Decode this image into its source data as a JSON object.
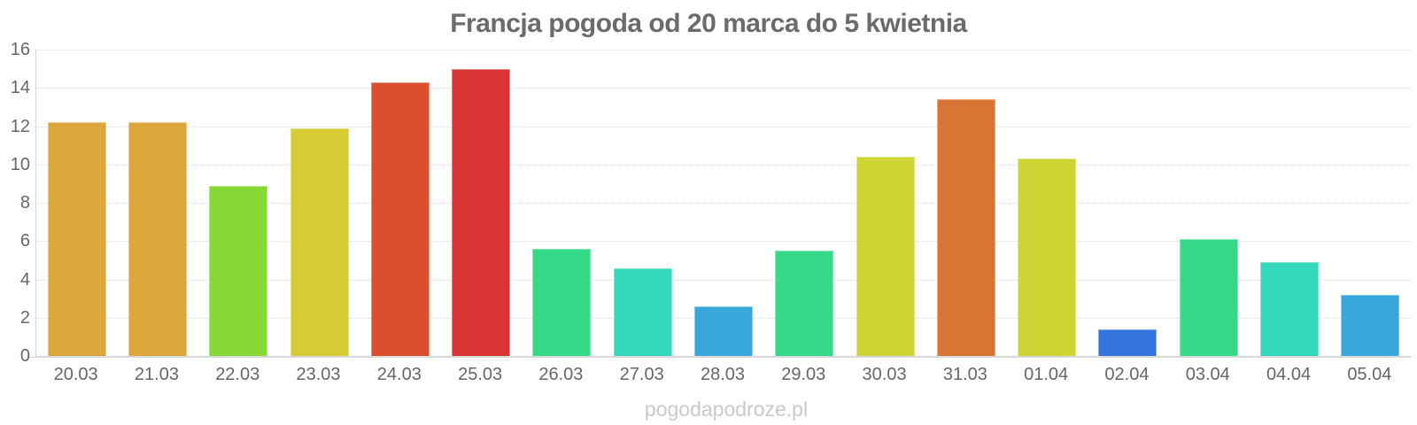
{
  "title": "Francja pogoda od 20 marca do 5 kwietnia",
  "watermark": "pogodapodroze.pl",
  "axis_colors": {
    "grid": "#dedede",
    "axis_line": "#d8d8d8",
    "tick_text": "#666666",
    "title_text": "#6b6b6b",
    "watermark_text": "#c9c9c9"
  },
  "chart_data": {
    "type": "bar",
    "title": "Francja pogoda od 20 marca do 5 kwietnia",
    "xlabel": "",
    "ylabel": "",
    "ylim": [
      0,
      16
    ],
    "y_ticks": [
      0,
      2,
      4,
      6,
      8,
      10,
      12,
      14,
      16
    ],
    "grid": "horizontal-dotted",
    "legend": "none",
    "categories": [
      "20.03",
      "21.03",
      "22.03",
      "23.03",
      "24.03",
      "25.03",
      "26.03",
      "27.03",
      "28.03",
      "29.03",
      "30.03",
      "31.03",
      "01.04",
      "02.04",
      "03.04",
      "04.04",
      "05.04"
    ],
    "values": [
      12.2,
      12.2,
      8.9,
      11.9,
      14.3,
      15.0,
      5.6,
      4.6,
      2.6,
      5.5,
      10.4,
      13.4,
      10.3,
      1.4,
      6.1,
      4.9,
      3.2
    ],
    "bar_colors": [
      "#dba73a",
      "#dba73a",
      "#88d836",
      "#d6cc35",
      "#d94f30",
      "#d93434",
      "#36d987",
      "#35d8ba",
      "#38a8da",
      "#36d987",
      "#ced433",
      "#d87434",
      "#ced433",
      "#3575db",
      "#36d987",
      "#35d8ba",
      "#38a8da"
    ]
  }
}
